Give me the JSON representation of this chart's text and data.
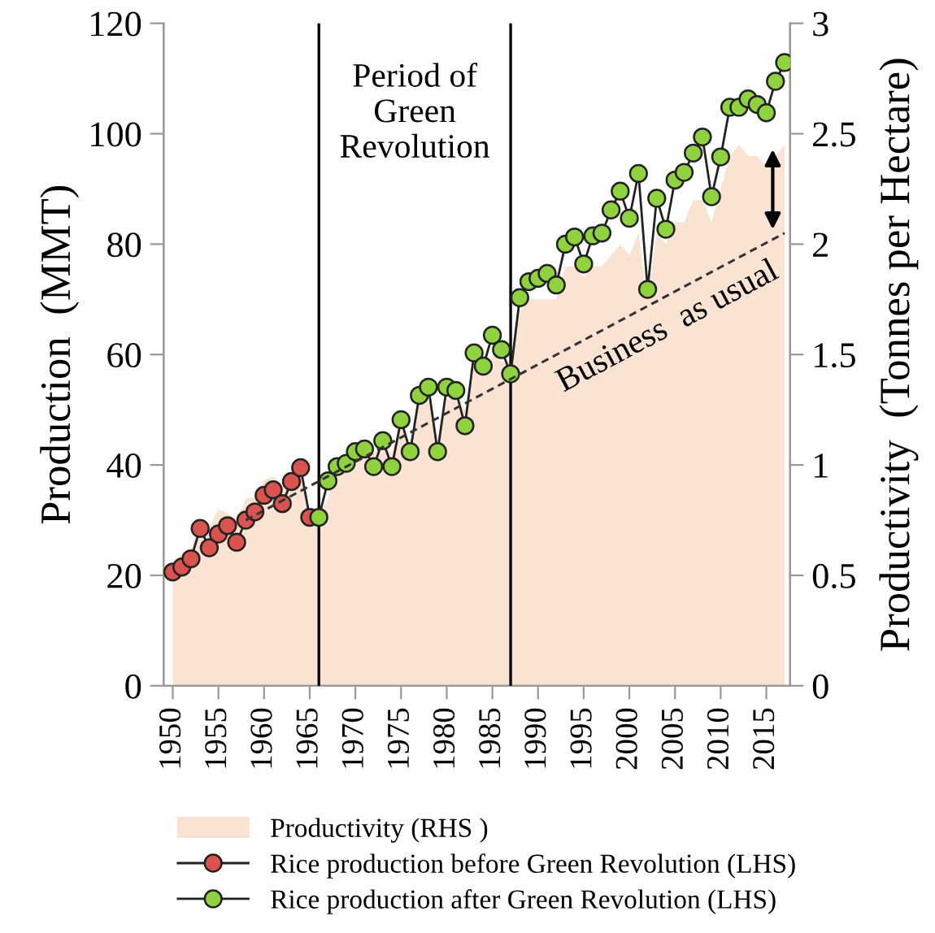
{
  "chart_data": {
    "type": "line",
    "xlabel": null,
    "ylabel": "Production  (MMT)",
    "y2label": "Productivity  (Tonnes per Hectare)",
    "xlim": [
      1949,
      2017.6
    ],
    "xticks": [
      1950,
      1955,
      1960,
      1965,
      1970,
      1975,
      1980,
      1985,
      1990,
      1995,
      2000,
      2005,
      2010,
      2015
    ],
    "ylim": [
      0,
      120
    ],
    "yticks": [
      0,
      20,
      40,
      60,
      80,
      100,
      120
    ],
    "y2lim": [
      0,
      3
    ],
    "y2ticks": [
      0,
      {
        "value": 0.5,
        "label": "0.5"
      },
      1,
      {
        "value": 1.5,
        "label": "1.5"
      },
      2,
      {
        "value": 2.5,
        "label": "2.5"
      },
      3
    ],
    "grid": false,
    "legend": "bottom",
    "series": [
      {
        "name": "Productivity (RHS )",
        "type": "area",
        "axis": "y2",
        "color": "#fbe3d3",
        "x": [
          1950,
          1951,
          1952,
          1953,
          1954,
          1955,
          1956,
          1957,
          1958,
          1959,
          1960,
          1961,
          1962,
          1963,
          1964,
          1965,
          1966,
          1967,
          1968,
          1969,
          1970,
          1971,
          1972,
          1973,
          1974,
          1975,
          1976,
          1977,
          1978,
          1979,
          1980,
          1981,
          1982,
          1983,
          1984,
          1985,
          1986,
          1987,
          1988,
          1989,
          1990,
          1991,
          1992,
          1993,
          1994,
          1995,
          1996,
          1997,
          1998,
          1999,
          2000,
          2001,
          2002,
          2003,
          2004,
          2005,
          2006,
          2007,
          2008,
          2009,
          2010,
          2011,
          2012,
          2013,
          2014,
          2015,
          2016,
          2017
        ],
        "values": [
          0.55,
          0.6,
          0.62,
          0.75,
          0.72,
          0.8,
          0.78,
          0.75,
          0.85,
          0.85,
          0.93,
          0.95,
          0.9,
          0.95,
          1.0,
          0.75,
          0.77,
          0.85,
          1.0,
          1.0,
          1.1,
          1.1,
          1.05,
          1.1,
          1.05,
          1.2,
          1.1,
          1.3,
          1.3,
          1.1,
          1.3,
          1.3,
          1.25,
          1.45,
          1.4,
          1.5,
          1.47,
          1.46,
          1.7,
          1.75,
          1.75,
          1.75,
          1.75,
          1.9,
          1.9,
          1.85,
          1.9,
          1.9,
          1.95,
          2.0,
          1.95,
          2.05,
          1.75,
          2.05,
          2.0,
          2.1,
          2.1,
          2.2,
          2.2,
          2.1,
          2.25,
          2.4,
          2.45,
          2.4,
          2.4,
          2.35,
          2.4,
          2.45
        ]
      },
      {
        "name": "Rice production before Green Revolution (LHS)",
        "marker": "circle",
        "color": "#d9534f",
        "x": [
          1950,
          1951,
          1952,
          1953,
          1954,
          1955,
          1956,
          1957,
          1958,
          1959,
          1960,
          1961,
          1962,
          1963,
          1964,
          1965
        ],
        "values": [
          20.6,
          21.5,
          23,
          28.5,
          25,
          27.5,
          29,
          26,
          30,
          31.5,
          34.5,
          35.5,
          33,
          37,
          39.5,
          30.5
        ]
      },
      {
        "name": "Rice production after Green Revolution (LHS)",
        "marker": "circle",
        "color": "#8fd13f",
        "x": [
          1966,
          1967,
          1968,
          1969,
          1970,
          1971,
          1972,
          1973,
          1974,
          1975,
          1976,
          1977,
          1978,
          1979,
          1980,
          1981,
          1982,
          1983,
          1984,
          1985,
          1986,
          1987,
          1988,
          1989,
          1990,
          1991,
          1992,
          1993,
          1994,
          1995,
          1996,
          1997,
          1998,
          1999,
          2000,
          2001,
          2002,
          2003,
          2004,
          2005,
          2006,
          2007,
          2008,
          2009,
          2010,
          2011,
          2012,
          2013,
          2014,
          2015,
          2016,
          2017
        ],
        "values": [
          30.5,
          37.1,
          39.7,
          40.3,
          42.4,
          42.9,
          39.7,
          44.4,
          39.7,
          48.2,
          42.4,
          52.6,
          54.1,
          42.4,
          54.1,
          53.5,
          47.1,
          60.3,
          57.9,
          63.5,
          60.9,
          56.5,
          70.3,
          73.2,
          73.8,
          74.7,
          72.6,
          80,
          81.3,
          76.4,
          81.5,
          82,
          86.2,
          89.6,
          84.7,
          92.8,
          71.8,
          88.3,
          82.7,
          91.6,
          93,
          96.5,
          99.4,
          88.6,
          95.8,
          104.8,
          104.8,
          106.3,
          105.3,
          103.8,
          109.5,
          112.9
        ]
      },
      {
        "line_style": "dashed",
        "marker": "none",
        "color": "#333333",
        "x": [
          1958,
          2017
        ],
        "values": [
          30,
          82
        ]
      }
    ],
    "ref_lines": [
      {
        "axis": "x",
        "value": 1966,
        "color": "#000000"
      },
      {
        "axis": "x",
        "value": 1987,
        "color": "#000000"
      }
    ],
    "annotations": [
      "Period of\nGreen\nRevolution",
      "Business  as usual"
    ]
  }
}
